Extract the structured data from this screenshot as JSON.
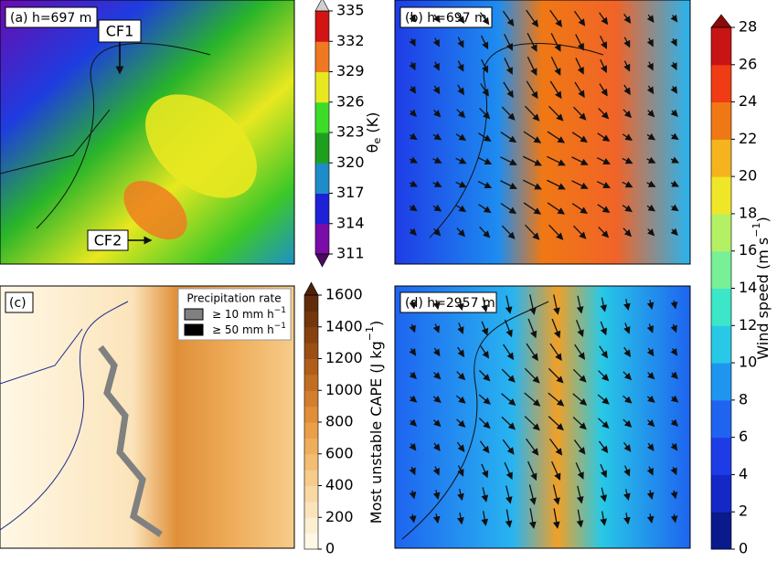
{
  "panels": [
    {
      "label": "(a) h=697 m"
    },
    {
      "label": "(b) h=697 m"
    },
    {
      "label": "(c)"
    },
    {
      "label": "(d) h=2957 m"
    }
  ],
  "annotations": [
    "CF1",
    "CF2"
  ],
  "legend": {
    "title": "Precipitation rate",
    "items": [
      {
        "text": "≥ 10 mm h",
        "sup": "−1",
        "color": "#808080"
      },
      {
        "text": "≥ 50 mm h",
        "sup": "−1",
        "color": "#000000"
      }
    ]
  },
  "colorbars": [
    {
      "label": {
        "text": "θ",
        "sub": "e",
        "after": " (K)"
      },
      "lim": [
        311,
        335
      ],
      "ticks": [
        311,
        314,
        317,
        320,
        323,
        326,
        329,
        332,
        335
      ],
      "colors": [
        "#7a0ca8",
        "#1e22d6",
        "#1e8cc8",
        "#1ea01e",
        "#3cdc28",
        "#e8e820",
        "#f07820",
        "#d21414"
      ],
      "extend_colors": {
        "max": "#d0d0d0",
        "min": "#4a0a5e"
      }
    },
    {
      "label": {
        "text": "Wind speed (m s",
        "sup": "−1",
        "after": ")"
      },
      "lim": [
        0,
        28
      ],
      "ticks": [
        0,
        2,
        4,
        6,
        8,
        10,
        12,
        14,
        16,
        18,
        20,
        22,
        24,
        26,
        28
      ],
      "colors": [
        "#0a1a8c",
        "#1428c8",
        "#1e3ce6",
        "#1e64f0",
        "#1e96f0",
        "#28c8e6",
        "#3ce6c8",
        "#78f096",
        "#b4f064",
        "#f0e628",
        "#f5b41e",
        "#f07814",
        "#f03c14",
        "#c81414"
      ],
      "extend_colors": {
        "max": "#8b0a0a"
      }
    },
    {
      "label": {
        "text": "Most unstable CAPE (J kg",
        "sup": "−1",
        "after": ")"
      },
      "lim": [
        0,
        1600
      ],
      "ticks": [
        0,
        200,
        400,
        600,
        800,
        1000,
        1200,
        1400,
        1600
      ],
      "colors": [
        "#fff8e6",
        "#fdefd2",
        "#fbe4bb",
        "#f9d9a3",
        "#f6cc8a",
        "#f3bd72",
        "#efae5c",
        "#ea9f48",
        "#e08f38",
        "#d27e2c",
        "#c26e22",
        "#b05e1a",
        "#9c4f14",
        "#884210",
        "#74360c",
        "#602c0a"
      ],
      "extend_colors": {
        "max": "#4e2208"
      }
    }
  ]
}
